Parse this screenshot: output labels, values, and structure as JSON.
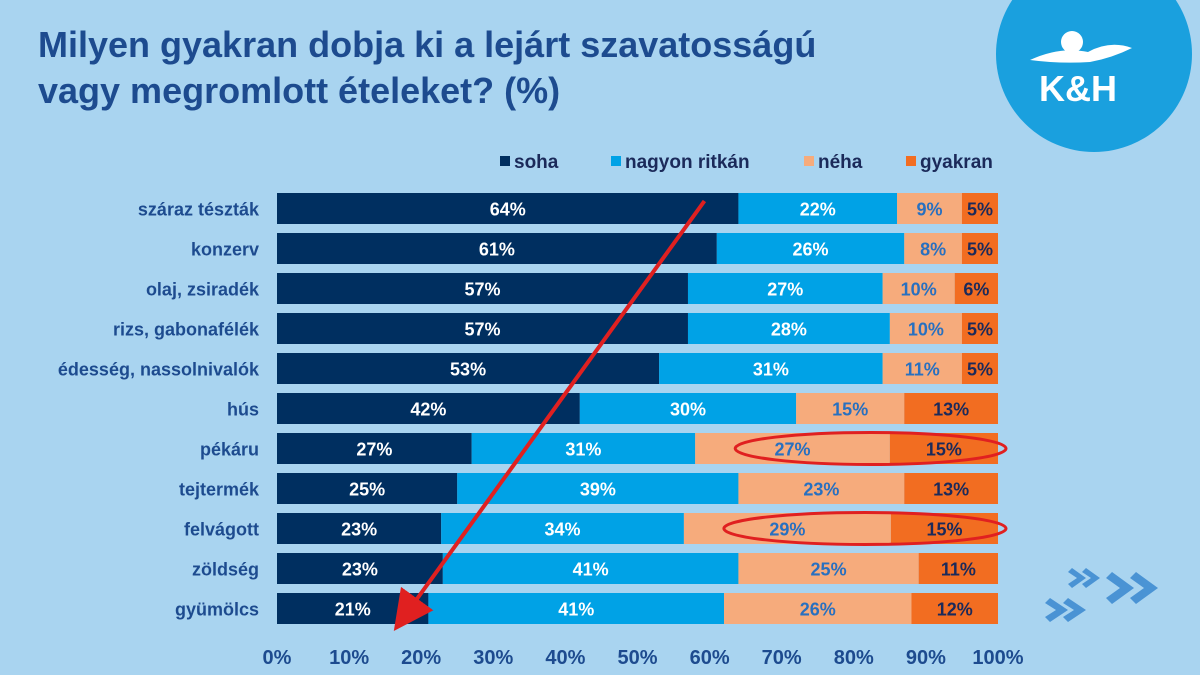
{
  "title_lines": [
    "Milyen gyakran dobja ki a lejárt szavatosságú",
    "vagy megromlott ételeket? (%)"
  ],
  "logo": {
    "text": "K&H",
    "colors": {
      "circle": "#1aa0de",
      "mark": "#ffffff"
    }
  },
  "colors": {
    "background": "#a9d4f0",
    "title": "#1d4b8f",
    "annotation": "#e02020"
  },
  "chart_data": {
    "type": "bar",
    "orientation": "horizontal",
    "stacked": "percent",
    "categories": [
      "száraz tészták",
      "konzerv",
      "olaj, zsiradék",
      "rizs, gabonafélék",
      "édesség, nassolnivalók",
      "hús",
      "pékáru",
      "tejtermék",
      "felvágott",
      "zöldség",
      "gyümölcs"
    ],
    "series": [
      {
        "name": "soha",
        "color": "#002f60",
        "label_color": "#ffffff",
        "values": [
          64,
          61,
          57,
          57,
          53,
          42,
          27,
          25,
          23,
          23,
          21
        ]
      },
      {
        "name": "nagyon ritkán",
        "color": "#00a2e6",
        "label_color": "#ffffff",
        "values": [
          22,
          26,
          27,
          28,
          31,
          30,
          31,
          39,
          34,
          41,
          41
        ]
      },
      {
        "name": "néha",
        "color": "#f6ab7c",
        "label_color": "#2870c0",
        "values": [
          9,
          8,
          10,
          10,
          11,
          15,
          27,
          23,
          29,
          25,
          26
        ]
      },
      {
        "name": "gyakran",
        "color": "#f26d21",
        "label_color": "#1b2a5a",
        "values": [
          5,
          5,
          6,
          5,
          5,
          13,
          15,
          13,
          15,
          11,
          12
        ]
      }
    ],
    "xlim": [
      0,
      100
    ],
    "x_ticks": [
      "0%",
      "10%",
      "20%",
      "30%",
      "40%",
      "50%",
      "60%",
      "70%",
      "80%",
      "90%",
      "100%"
    ],
    "legend_position": "top",
    "grid": false,
    "highlighted_categories": [
      "pékáru",
      "felvágott"
    ],
    "trend_arrow": "red arrow from the top of the 'soha' segments down to 'gyümölcs'"
  }
}
